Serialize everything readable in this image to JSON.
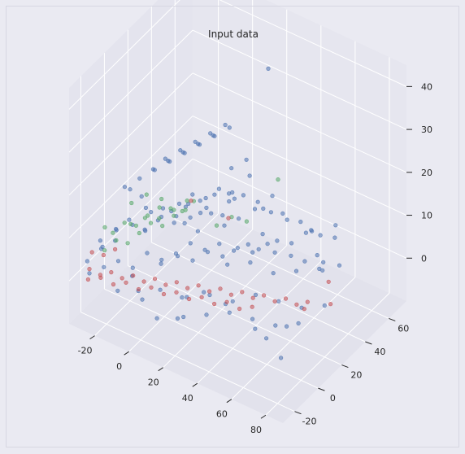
{
  "chart_data": {
    "type": "scatter",
    "projection": "3d",
    "title": "Input data",
    "xlabel": "",
    "ylabel": "",
    "zlabel": "",
    "xlim": [
      -35,
      90
    ],
    "ylim": [
      -30,
      75
    ],
    "zlim": [
      -10,
      45
    ],
    "x_ticks": [
      "-20",
      "0",
      "20",
      "40",
      "60",
      "80"
    ],
    "y_ticks": [
      "-20",
      "0",
      "20",
      "40",
      "60"
    ],
    "z_ticks": [
      "0",
      "10",
      "20",
      "30",
      "40"
    ],
    "grid": true,
    "legend": "none",
    "background": "#eaeaf2",
    "series": [
      {
        "color": "#4c72b0",
        "points": [
          [
            -30,
            -20,
            0
          ],
          [
            -25,
            -15,
            1
          ],
          [
            -20,
            -10,
            2
          ],
          [
            -15,
            -5,
            0
          ],
          [
            -10,
            0,
            3
          ],
          [
            -5,
            5,
            1
          ],
          [
            0,
            10,
            2
          ],
          [
            5,
            15,
            4
          ],
          [
            10,
            20,
            2
          ],
          [
            15,
            25,
            3
          ],
          [
            20,
            30,
            1
          ],
          [
            25,
            35,
            2
          ],
          [
            30,
            40,
            4
          ],
          [
            35,
            45,
            2
          ],
          [
            40,
            50,
            1
          ],
          [
            45,
            55,
            3
          ],
          [
            50,
            60,
            2
          ],
          [
            55,
            65,
            1
          ],
          [
            -28,
            0,
            5
          ],
          [
            -22,
            5,
            6
          ],
          [
            -18,
            10,
            4
          ],
          [
            -12,
            15,
            7
          ],
          [
            -8,
            20,
            5
          ],
          [
            -2,
            25,
            6
          ],
          [
            4,
            30,
            8
          ],
          [
            10,
            35,
            6
          ],
          [
            16,
            40,
            5
          ],
          [
            22,
            45,
            7
          ],
          [
            28,
            50,
            6
          ],
          [
            34,
            55,
            4
          ],
          [
            -25,
            -18,
            8
          ],
          [
            -20,
            -12,
            10
          ],
          [
            -15,
            -8,
            12
          ],
          [
            -10,
            -2,
            9
          ],
          [
            -5,
            2,
            11
          ],
          [
            0,
            6,
            13
          ],
          [
            5,
            10,
            10
          ],
          [
            10,
            14,
            8
          ],
          [
            15,
            18,
            12
          ],
          [
            20,
            22,
            9
          ],
          [
            -30,
            10,
            12
          ],
          [
            -24,
            14,
            14
          ],
          [
            -18,
            18,
            16
          ],
          [
            -12,
            22,
            18
          ],
          [
            -6,
            26,
            20
          ],
          [
            0,
            30,
            22
          ],
          [
            6,
            34,
            24
          ],
          [
            12,
            38,
            26
          ],
          [
            -20,
            30,
            15
          ],
          [
            -14,
            34,
            17
          ],
          [
            -8,
            38,
            19
          ],
          [
            -2,
            42,
            21
          ],
          [
            4,
            46,
            23
          ],
          [
            20,
            -10,
            1
          ],
          [
            30,
            -5,
            2
          ],
          [
            40,
            0,
            1
          ],
          [
            50,
            5,
            3
          ],
          [
            60,
            10,
            2
          ],
          [
            70,
            15,
            1
          ],
          [
            80,
            20,
            2
          ],
          [
            25,
            -20,
            0
          ],
          [
            35,
            -15,
            1
          ],
          [
            45,
            -10,
            2
          ],
          [
            55,
            -5,
            1
          ],
          [
            65,
            0,
            0
          ],
          [
            75,
            5,
            1
          ],
          [
            30,
            10,
            5
          ],
          [
            40,
            15,
            6
          ],
          [
            50,
            20,
            4
          ],
          [
            60,
            25,
            5
          ],
          [
            70,
            30,
            6
          ],
          [
            -10,
            -25,
            1
          ],
          [
            0,
            -22,
            2
          ],
          [
            10,
            -18,
            3
          ],
          [
            20,
            -14,
            2
          ],
          [
            30,
            -10,
            4
          ],
          [
            40,
            -6,
            2
          ],
          [
            -15,
            40,
            2
          ],
          [
            -10,
            45,
            3
          ],
          [
            -5,
            50,
            4
          ],
          [
            0,
            55,
            2
          ],
          [
            5,
            60,
            3
          ],
          [
            10,
            65,
            1
          ],
          [
            15,
            70,
            2
          ],
          [
            -25,
            25,
            3
          ],
          [
            -20,
            28,
            4
          ],
          [
            -15,
            32,
            2
          ],
          [
            -10,
            35,
            5
          ],
          [
            -5,
            38,
            3
          ],
          [
            5,
            -10,
            6
          ],
          [
            12,
            -6,
            8
          ],
          [
            18,
            -2,
            7
          ],
          [
            24,
            2,
            9
          ],
          [
            30,
            6,
            8
          ],
          [
            36,
            10,
            10
          ],
          [
            42,
            14,
            9
          ],
          [
            48,
            18,
            11
          ],
          [
            -5,
            20,
            10
          ],
          [
            0,
            24,
            12
          ],
          [
            5,
            28,
            11
          ],
          [
            10,
            32,
            13
          ],
          [
            15,
            36,
            12
          ],
          [
            60,
            -10,
            1
          ],
          [
            70,
            -15,
            2
          ],
          [
            82,
            -20,
            1
          ],
          [
            75,
            -5,
            3
          ],
          [
            65,
            40,
            2
          ],
          [
            55,
            50,
            1
          ],
          [
            45,
            60,
            2
          ],
          [
            35,
            65,
            1
          ],
          [
            20,
            55,
            4
          ],
          [
            28,
            60,
            3
          ],
          [
            8,
            48,
            6
          ],
          [
            2,
            52,
            5
          ],
          [
            -30,
            -10,
            3
          ],
          [
            -26,
            -4,
            4
          ],
          [
            -34,
            -16,
            1
          ],
          [
            -32,
            -6,
            2
          ],
          [
            14,
            68,
            32
          ],
          [
            46,
            58,
            3
          ],
          [
            52,
            70,
            2
          ],
          [
            -12,
            8,
            20
          ],
          [
            -6,
            12,
            22
          ],
          [
            0,
            16,
            24
          ],
          [
            6,
            20,
            26
          ],
          [
            12,
            24,
            28
          ],
          [
            -20,
            0,
            16
          ],
          [
            -16,
            4,
            14
          ],
          [
            -8,
            -4,
            15
          ],
          [
            25,
            -25,
            1
          ],
          [
            15,
            -28,
            0
          ],
          [
            5,
            -26,
            2
          ],
          [
            -5,
            -20,
            4
          ],
          [
            38,
            25,
            6
          ],
          [
            44,
            30,
            5
          ],
          [
            50,
            35,
            4
          ],
          [
            56,
            38,
            3
          ],
          [
            62,
            45,
            2
          ],
          [
            68,
            50,
            1
          ],
          [
            -2,
            60,
            8
          ],
          [
            4,
            64,
            10
          ],
          [
            10,
            58,
            9
          ]
        ]
      },
      {
        "color": "#55a868",
        "points": [
          [
            -30,
            0,
            4
          ],
          [
            -26,
            4,
            6
          ],
          [
            -22,
            8,
            5
          ],
          [
            -18,
            12,
            7
          ],
          [
            -14,
            16,
            6
          ],
          [
            -10,
            20,
            8
          ],
          [
            -6,
            24,
            7
          ],
          [
            -2,
            28,
            9
          ],
          [
            -28,
            -10,
            3
          ],
          [
            -24,
            -6,
            5
          ],
          [
            -20,
            -2,
            4
          ],
          [
            -16,
            2,
            6
          ],
          [
            -12,
            6,
            8
          ],
          [
            -8,
            10,
            7
          ],
          [
            -4,
            14,
            9
          ],
          [
            0,
            18,
            10
          ],
          [
            -30,
            15,
            2
          ],
          [
            -25,
            20,
            3
          ],
          [
            -20,
            25,
            5
          ],
          [
            -15,
            30,
            4
          ],
          [
            -10,
            34,
            6
          ],
          [
            10,
            30,
            5
          ],
          [
            16,
            34,
            7
          ],
          [
            22,
            38,
            6
          ],
          [
            -32,
            -4,
            6
          ],
          [
            -26,
            10,
            9
          ],
          [
            -20,
            14,
            11
          ],
          [
            -14,
            18,
            10
          ],
          [
            28,
            56,
            12
          ]
        ]
      },
      {
        "color": "#c44e52",
        "points": [
          [
            -30,
            -20,
            1
          ],
          [
            -25,
            -18,
            0
          ],
          [
            -20,
            -16,
            1
          ],
          [
            -15,
            -14,
            0
          ],
          [
            -10,
            -12,
            1
          ],
          [
            -5,
            -10,
            0
          ],
          [
            0,
            -8,
            1
          ],
          [
            5,
            -6,
            0
          ],
          [
            10,
            -4,
            1
          ],
          [
            15,
            -2,
            0
          ],
          [
            20,
            0,
            1
          ],
          [
            25,
            2,
            0
          ],
          [
            30,
            4,
            1
          ],
          [
            35,
            6,
            0
          ],
          [
            40,
            8,
            1
          ],
          [
            45,
            10,
            0
          ],
          [
            50,
            12,
            1
          ],
          [
            55,
            14,
            0
          ],
          [
            60,
            16,
            1
          ],
          [
            65,
            18,
            0
          ],
          [
            70,
            20,
            1
          ],
          [
            -28,
            -24,
            0
          ],
          [
            -22,
            -22,
            1
          ],
          [
            -16,
            -20,
            0
          ],
          [
            -10,
            -18,
            1
          ],
          [
            -4,
            -16,
            0
          ],
          [
            2,
            -14,
            1
          ],
          [
            8,
            -12,
            0
          ],
          [
            14,
            -10,
            1
          ],
          [
            20,
            -8,
            0
          ],
          [
            26,
            -6,
            1
          ],
          [
            32,
            -4,
            0
          ],
          [
            38,
            -2,
            1
          ],
          [
            44,
            0,
            0
          ],
          [
            50,
            2,
            1
          ],
          [
            -34,
            -12,
            2
          ],
          [
            -30,
            -8,
            1
          ],
          [
            -26,
            -4,
            2
          ],
          [
            75,
            10,
            3
          ],
          [
            80,
            25,
            1
          ],
          [
            72,
            35,
            2
          ],
          [
            -5,
            30,
            8
          ],
          [
            10,
            40,
            4
          ]
        ]
      }
    ]
  }
}
